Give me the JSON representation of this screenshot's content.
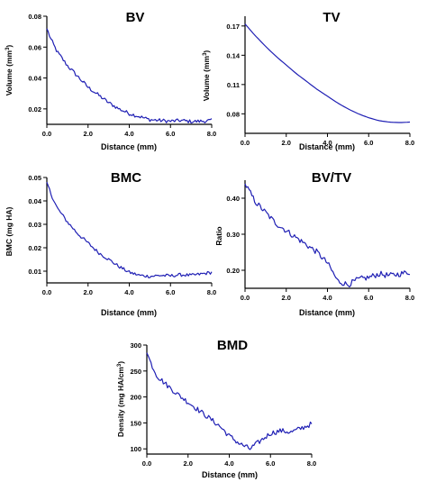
{
  "chart_data": [
    {
      "type": "line",
      "title": "BV",
      "xlabel": "Distance (mm)",
      "ylabel": "Volume (mm³)",
      "ylabel_main": "Volume (mm",
      "ylabel_sup": "3",
      "ylabel_end": ")",
      "xlim": [
        0,
        8
      ],
      "ylim": [
        0.01,
        0.08
      ],
      "xticks": [
        0,
        2,
        4,
        6,
        8
      ],
      "xtick_labels": [
        "0.0",
        "2.0",
        "4.0",
        "6.0",
        "8.0"
      ],
      "yticks": [
        0.02,
        0.04,
        0.06,
        0.08
      ],
      "ytick_labels": [
        "0.02",
        "0.04",
        "0.06",
        "0.08"
      ],
      "series_color": "#1f1fb4",
      "noise": 0.0012,
      "x": [
        0,
        0.2,
        0.5,
        1.0,
        1.5,
        2.0,
        2.5,
        3.0,
        3.5,
        4.0,
        4.5,
        5.0,
        5.5,
        6.0,
        6.5,
        7.0,
        7.5,
        8.0
      ],
      "values": [
        0.072,
        0.065,
        0.057,
        0.048,
        0.041,
        0.034,
        0.029,
        0.024,
        0.02,
        0.017,
        0.015,
        0.013,
        0.0125,
        0.012,
        0.0125,
        0.0118,
        0.012,
        0.0125
      ]
    },
    {
      "type": "line",
      "title": "TV",
      "xlabel": "Distance (mm)",
      "ylabel": "Volume (mm³)",
      "ylabel_main": "Volume (mm",
      "ylabel_sup": "3",
      "ylabel_end": ")",
      "xlim": [
        0,
        8
      ],
      "ylim": [
        0.06,
        0.18
      ],
      "xticks": [
        0,
        2,
        4,
        6,
        8
      ],
      "xtick_labels": [
        "0.0",
        "2.0",
        "4.0",
        "6.0",
        "8.0"
      ],
      "yticks": [
        0.08,
        0.11,
        0.14,
        0.17
      ],
      "ytick_labels": [
        "0.08",
        "0.11",
        "0.14",
        "0.17"
      ],
      "series_color": "#1f1fb4",
      "noise": 0,
      "x": [
        0,
        0.5,
        1.0,
        1.5,
        2.0,
        2.5,
        3.0,
        3.5,
        4.0,
        4.5,
        5.0,
        5.5,
        6.0,
        6.5,
        7.0,
        7.5,
        8.0
      ],
      "values": [
        0.172,
        0.16,
        0.149,
        0.139,
        0.13,
        0.121,
        0.113,
        0.105,
        0.098,
        0.091,
        0.085,
        0.08,
        0.076,
        0.073,
        0.0715,
        0.071,
        0.0715
      ]
    },
    {
      "type": "line",
      "title": "BMC",
      "xlabel": "Distance (mm)",
      "ylabel": "BMC (mg HA)",
      "xlim": [
        0,
        8
      ],
      "ylim": [
        0.005,
        0.05
      ],
      "xticks": [
        0,
        2,
        4,
        6,
        8
      ],
      "xtick_labels": [
        "0.0",
        "2.0",
        "4.0",
        "6.0",
        "8.0"
      ],
      "yticks": [
        0.01,
        0.02,
        0.03,
        0.04,
        0.05
      ],
      "ytick_labels": [
        "0.01",
        "0.02",
        "0.03",
        "0.04",
        "0.05"
      ],
      "series_color": "#1f1fb4",
      "noise": 0.0007,
      "x": [
        0,
        0.2,
        0.5,
        1.0,
        1.5,
        2.0,
        2.5,
        3.0,
        3.5,
        4.0,
        4.5,
        5.0,
        5.5,
        6.0,
        6.5,
        7.0,
        7.5,
        8.0
      ],
      "values": [
        0.048,
        0.043,
        0.037,
        0.031,
        0.026,
        0.022,
        0.018,
        0.015,
        0.012,
        0.0095,
        0.0082,
        0.0078,
        0.0082,
        0.008,
        0.0085,
        0.0082,
        0.0088,
        0.0095
      ]
    },
    {
      "type": "line",
      "title": "BV/TV",
      "xlabel": "Distance (mm)",
      "ylabel": "Ratio",
      "xlim": [
        0,
        8
      ],
      "ylim": [
        0.15,
        0.45
      ],
      "xticks": [
        0,
        2,
        4,
        6,
        8
      ],
      "xtick_labels": [
        "0.0",
        "2.0",
        "4.0",
        "6.0",
        "8.0"
      ],
      "yticks": [
        0.2,
        0.3,
        0.4
      ],
      "ytick_labels": [
        "0.20",
        "0.30",
        "0.40"
      ],
      "series_color": "#1f1fb4",
      "noise": 0.008,
      "x": [
        0,
        0.2,
        0.5,
        1.0,
        1.5,
        2.0,
        2.5,
        3.0,
        3.5,
        4.0,
        4.5,
        5.0,
        5.5,
        6.0,
        6.5,
        7.0,
        7.5,
        8.0
      ],
      "values": [
        0.44,
        0.42,
        0.39,
        0.36,
        0.33,
        0.31,
        0.29,
        0.27,
        0.25,
        0.22,
        0.17,
        0.16,
        0.175,
        0.18,
        0.19,
        0.185,
        0.19,
        0.195
      ]
    },
    {
      "type": "line",
      "title": "BMD",
      "xlabel": "Distance (mm)",
      "ylabel": "Density (mg HA/cm³)",
      "ylabel_main": "Density (mg HA/cm",
      "ylabel_sup": "3",
      "ylabel_end": ")",
      "xlim": [
        0,
        8
      ],
      "ylim": [
        90,
        300
      ],
      "xticks": [
        0,
        2,
        4,
        6,
        8
      ],
      "xtick_labels": [
        "0.0",
        "2.0",
        "4.0",
        "6.0",
        "8.0"
      ],
      "yticks": [
        100,
        150,
        200,
        250,
        300
      ],
      "ytick_labels": [
        "100",
        "150",
        "200",
        "250",
        "300"
      ],
      "series_color": "#1f1fb4",
      "noise": 5,
      "x": [
        0,
        0.2,
        0.5,
        1.0,
        1.5,
        2.0,
        2.5,
        3.0,
        3.5,
        4.0,
        4.5,
        5.0,
        5.5,
        6.0,
        6.5,
        7.0,
        7.5,
        8.0
      ],
      "values": [
        285,
        265,
        240,
        222,
        205,
        190,
        175,
        160,
        145,
        125,
        110,
        100,
        115,
        130,
        135,
        132,
        140,
        148
      ]
    }
  ]
}
